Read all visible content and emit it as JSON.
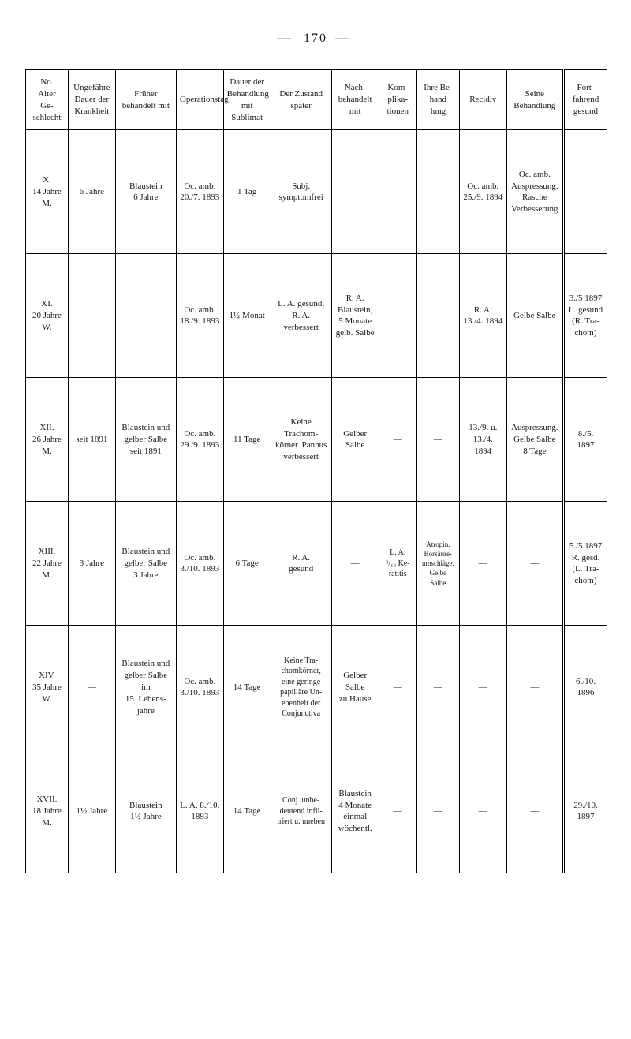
{
  "page_number": "170",
  "headers": {
    "no": "No.\nAlter\nGe-\nschlecht",
    "dauer_krank": "Ungefähre\nDauer der\nKrankheit",
    "fruher": "Früher\nbehandelt mit",
    "operation": "Operationstag",
    "dauer_beh": "Dauer der\nBehandlung\nmit Sublimat",
    "zustand": "Der Zustand\nspäter",
    "nach": "Nach-\nbehandelt\nmit",
    "kom": "Kom-\nplika-\ntionen",
    "ihre": "Ihre Be-\nhand\nlung",
    "recidiv": "Recidiv",
    "seine": "Seine\nBehandlung",
    "fort": "Fort-\nfahrend\ngesund"
  },
  "rows": [
    {
      "no": "X.\n14 Jahre\nM.",
      "dauer_krank": "6 Jahre",
      "fruher": "Blaustein\n6 Jahre",
      "operation": "Oc. amb.\n20./7. 1893",
      "dauer_beh": "1 Tag",
      "zustand": "Subj.\nsymptomfrei",
      "nach": "—",
      "kom": "—",
      "ihre": "—",
      "recidiv": "Oc. amb.\n25./9. 1894",
      "seine": "Oc. amb.\nAuspressung.\nRasche\nVerbesserung",
      "fort": "—"
    },
    {
      "no": "XI.\n20 Jahre\nW.",
      "dauer_krank": "—",
      "fruher": "–",
      "operation": "Oc. amb.\n18./9. 1893",
      "dauer_beh": "1½ Monat",
      "zustand": "L. A. gesund,\nR. A.\nverbessert",
      "nach": "R. A.\nBlaustein,\n5 Monate\ngelb. Salbe",
      "kom": "—",
      "ihre": "—",
      "recidiv": "R. A.\n13./4. 1894",
      "seine": "Gelbe Salbe",
      "fort": "3./5 1897\nL. gesund\n(R. Tra-\nchom)"
    },
    {
      "no": "XII.\n26 Jahre\nM.",
      "dauer_krank": "seit 1891",
      "fruher": "Blaustein und\ngelber Salbe\nseit 1891",
      "operation": "Oc. amb.\n29./9. 1893",
      "dauer_beh": "11 Tage",
      "zustand": "Keine\nTrachom-\nkörner. Pannus\nverbessert",
      "nach": "Gelber\nSalbe",
      "kom": "—",
      "ihre": "—",
      "recidiv": "13./9. u. 13./4.\n1894",
      "seine": "Auspressung.\nGelbe Salbe\n8 Tage",
      "fort": "8./5.\n1897"
    },
    {
      "no": "XIII.\n22 Jahre\nM.",
      "dauer_krank": "3 Jahre",
      "fruher": "Blaustein und\ngelber Salbe\n3 Jahre",
      "operation": "Oc. amb.\n3./10. 1893",
      "dauer_beh": "6 Tage",
      "zustand": "R. A.\ngesund",
      "nach": "—",
      "kom": "L. A.\n⁹/₁₀ Ke-\nratitis",
      "ihre": "Atropin.\nBorsäure-\numschläge.\nGelbe\nSalbe",
      "recidiv": "—",
      "seine": "—",
      "fort": "5./5 1897\nR. gesd.\n(L. Tra-\nchom)"
    },
    {
      "no": "XIV.\n35 Jahre\nW.",
      "dauer_krank": "—",
      "fruher": "Blaustein und\ngelber Salbe im\n15. Lebens-\njahre",
      "operation": "Oc. amb.\n3./10. 1893",
      "dauer_beh": "14 Tage",
      "zustand": "Keine Tra-\nchomkörner,\neine geringe\npapilläre Un-\nebenheit der\nConjunctiva",
      "nach": "Gelber\nSalbe\nzu Hause",
      "kom": "—",
      "ihre": "—",
      "recidiv": "—",
      "seine": "—",
      "fort": "6./10.\n1896"
    },
    {
      "no": "XVII.\n18 Jahre\nM.",
      "dauer_krank": "1½ Jahre",
      "fruher": "Blaustein\n1½ Jahre",
      "operation": "L. A. 8./10.\n1893",
      "dauer_beh": "14 Tage",
      "zustand": "Conj. unbe-\ndeutend infil-\ntriert u. uneben",
      "nach": "Blaustein\n4 Monate\neinmal\nwöchentl.",
      "kom": "—",
      "ihre": "—",
      "recidiv": "—",
      "seine": "—",
      "fort": "29./10.\n1897"
    }
  ]
}
